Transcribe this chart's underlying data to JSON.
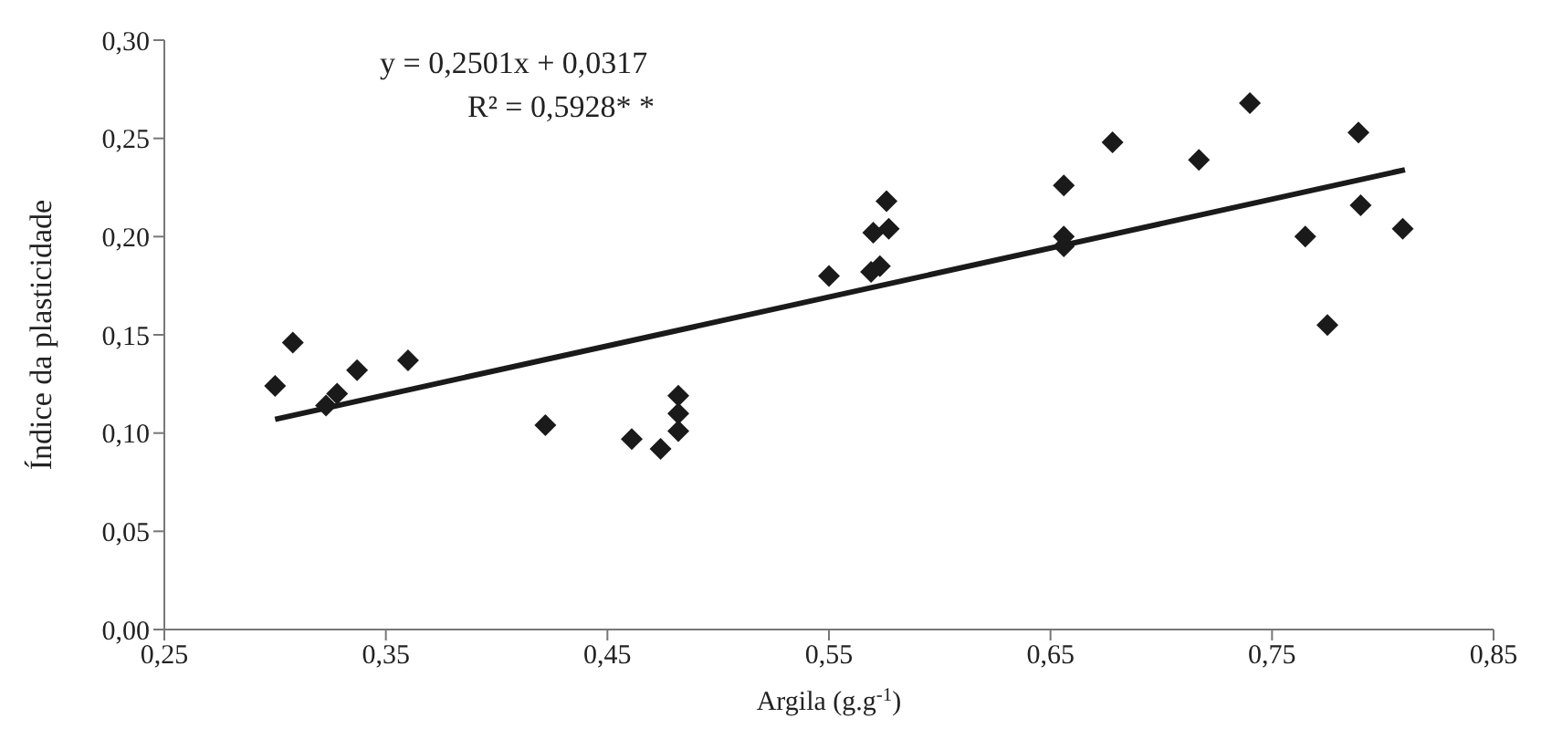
{
  "chart_data": {
    "type": "scatter",
    "xlabel": "Argila (g.g$^{-1}$)",
    "ylabel": "Índice da plasticidade",
    "annotations": [
      "y = 0,2501x + 0,0317",
      "R² = 0,5928* *"
    ],
    "xlim": [
      0.25,
      0.85
    ],
    "ylim": [
      0,
      0.3
    ],
    "xticks": [
      {
        "value": 0.25,
        "label": "0,25"
      },
      {
        "value": 0.35,
        "label": "0,35"
      },
      {
        "value": 0.45,
        "label": "0,45"
      },
      {
        "value": 0.55,
        "label": "0,55"
      },
      {
        "value": 0.65,
        "label": "0,65"
      },
      {
        "value": 0.75,
        "label": "0,75"
      },
      {
        "value": 0.85,
        "label": "0,85"
      }
    ],
    "yticks": [
      {
        "value": 0,
        "label": "0,00"
      },
      {
        "value": 0.05,
        "label": "0,05"
      },
      {
        "value": 0.1,
        "label": "0,10"
      },
      {
        "value": 0.15,
        "label": "0,15"
      },
      {
        "value": 0.2,
        "label": "0,20"
      },
      {
        "value": 0.25,
        "label": "0,25"
      },
      {
        "value": 0.3,
        "label": "0,30"
      }
    ],
    "grid": false,
    "legend": false,
    "marker": "diamond",
    "series": [
      {
        "color": "#1a1a1a",
        "x": [
          0.3,
          0.308,
          0.323,
          0.328,
          0.337,
          0.36,
          0.422,
          0.461,
          0.474,
          0.482,
          0.482,
          0.482,
          0.55,
          0.569,
          0.573,
          0.57,
          0.577,
          0.576,
          0.656,
          0.656,
          0.656,
          0.678,
          0.717,
          0.74,
          0.789,
          0.79,
          0.765,
          0.809,
          0.775
        ],
        "values": [
          0.124,
          0.146,
          0.114,
          0.12,
          0.132,
          0.137,
          0.104,
          0.097,
          0.092,
          0.101,
          0.11,
          0.119,
          0.18,
          0.182,
          0.185,
          0.202,
          0.204,
          0.218,
          0.2,
          0.195,
          0.226,
          0.248,
          0.239,
          0.268,
          0.253,
          0.216,
          0.2,
          0.204,
          0.155
        ]
      },
      {
        "type": "line",
        "color": "#1a1a1a",
        "x": [
          0.3,
          0.81
        ],
        "values": [
          0.107,
          0.234
        ],
        "marker": "none",
        "line_style": "solid"
      }
    ]
  }
}
